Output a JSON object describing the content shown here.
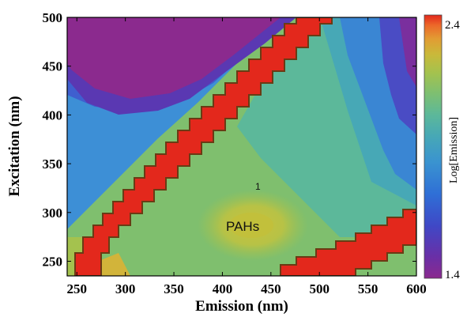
{
  "chart_data": {
    "type": "heatmap",
    "subtype": "filled-contour (excitation-emission matrix)",
    "xlabel": "Emission (nm)",
    "ylabel": "Excitation (nm)",
    "xlim": [
      240,
      600
    ],
    "ylim": [
      235,
      500
    ],
    "xticks": [
      250,
      300,
      350,
      400,
      450,
      500,
      550,
      600
    ],
    "yticks": [
      250,
      300,
      350,
      400,
      450,
      500
    ],
    "colorbar": {
      "label": "Log[Emission]",
      "min": 1.4,
      "max": 2.4,
      "ticks": [
        "1.4",
        "2.4"
      ],
      "colors": [
        "#8b2a8e",
        "#6a2fa6",
        "#3f48c6",
        "#2f6fd6",
        "#3a93d0",
        "#47a8b6",
        "#5cb89a",
        "#7dbf72",
        "#a4c24e",
        "#c9b93a",
        "#e29c33",
        "#ec6a2a",
        "#e3281c"
      ]
    },
    "features": [
      {
        "name": "Rayleigh scatter band (1st order)",
        "path": "emission ≈ excitation",
        "value": 2.4
      },
      {
        "name": "2nd order scatter band",
        "path": "emission ≈ 2 × excitation",
        "value": 2.4
      }
    ],
    "annotations": [
      {
        "text": "PAHs",
        "x": 415,
        "y": 280
      },
      {
        "text": "1",
        "x": 428,
        "y": 326
      }
    ],
    "grid": false,
    "contour_lines": true
  }
}
